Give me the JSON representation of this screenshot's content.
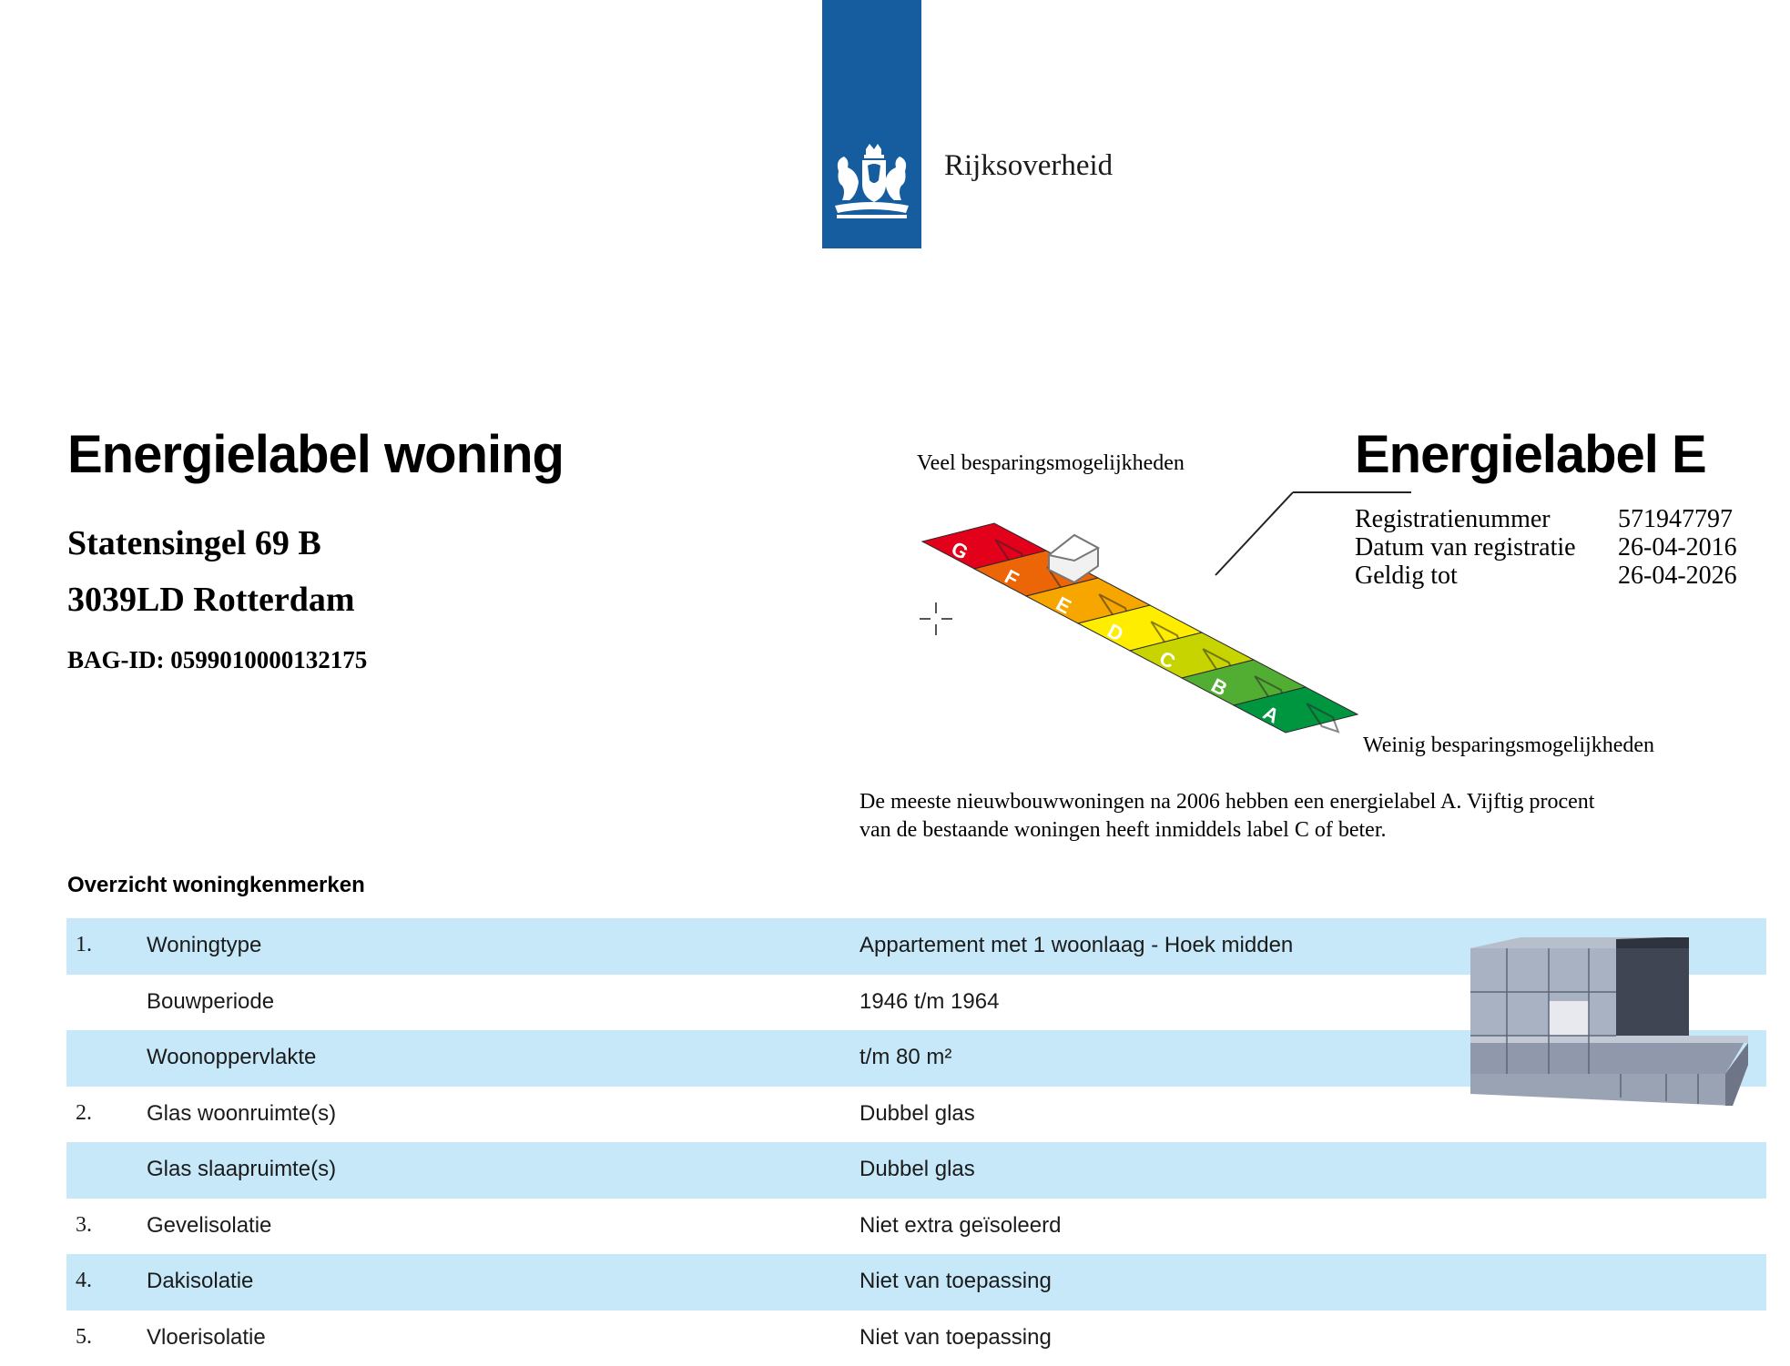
{
  "header": {
    "logo_text": "Rijksoverheid",
    "logo_color": "#155d9e",
    "logo_emblem": "coat-of-arms"
  },
  "document": {
    "title": "Energielabel woning",
    "address_line1": "Statensingel 69 B",
    "address_line2": "3039LD Rotterdam",
    "bag_id": "BAG-ID: 0599010000132175"
  },
  "label": {
    "title": "Energielabel E",
    "current_class": "E",
    "registration": [
      {
        "key": "Registratienummer",
        "value": "571947797"
      },
      {
        "key": "Datum van registratie",
        "value": "26-04-2016"
      },
      {
        "key": "Geldig tot",
        "value": "26-04-2026"
      }
    ]
  },
  "scale": {
    "top_caption": "Veel besparingsmogelijkheden",
    "bottom_caption": "Weinig besparingsmogelijkheden",
    "classes": [
      "G",
      "F",
      "E",
      "D",
      "C",
      "B",
      "A"
    ],
    "colors": [
      "#e2001a",
      "#ec6608",
      "#f7a600",
      "#ffed00",
      "#c8d400",
      "#52ae32",
      "#009640"
    ]
  },
  "intro": {
    "line1": "De meeste nieuwbouwwoningen na 2006 hebben een energielabel A. Vijftig procent",
    "line2": "van de bestaande woningen heeft inmiddels label C of beter."
  },
  "overview": {
    "heading": "Overzicht woningkenmerken",
    "rows": [
      {
        "num": "1.",
        "label": "Woningtype",
        "value": "Appartement met 1 woonlaag - Hoek midden"
      },
      {
        "num": "",
        "label": "Bouwperiode",
        "value": "1946 t/m 1964"
      },
      {
        "num": "",
        "label": "Woonoppervlakte",
        "value": "t/m 80 m²"
      },
      {
        "num": "2.",
        "label": "Glas woonruimte(s)",
        "value": "Dubbel glas"
      },
      {
        "num": "",
        "label": "Glas slaapruimte(s)",
        "value": "Dubbel glas"
      },
      {
        "num": "3.",
        "label": "Gevelisolatie",
        "value": "Niet extra geïsoleerd"
      },
      {
        "num": "4.",
        "label": "Dakisolatie",
        "value": "Niet van toepassing"
      },
      {
        "num": "5.",
        "label": "Vloerisolatie",
        "value": "Niet van toepassing"
      }
    ]
  }
}
